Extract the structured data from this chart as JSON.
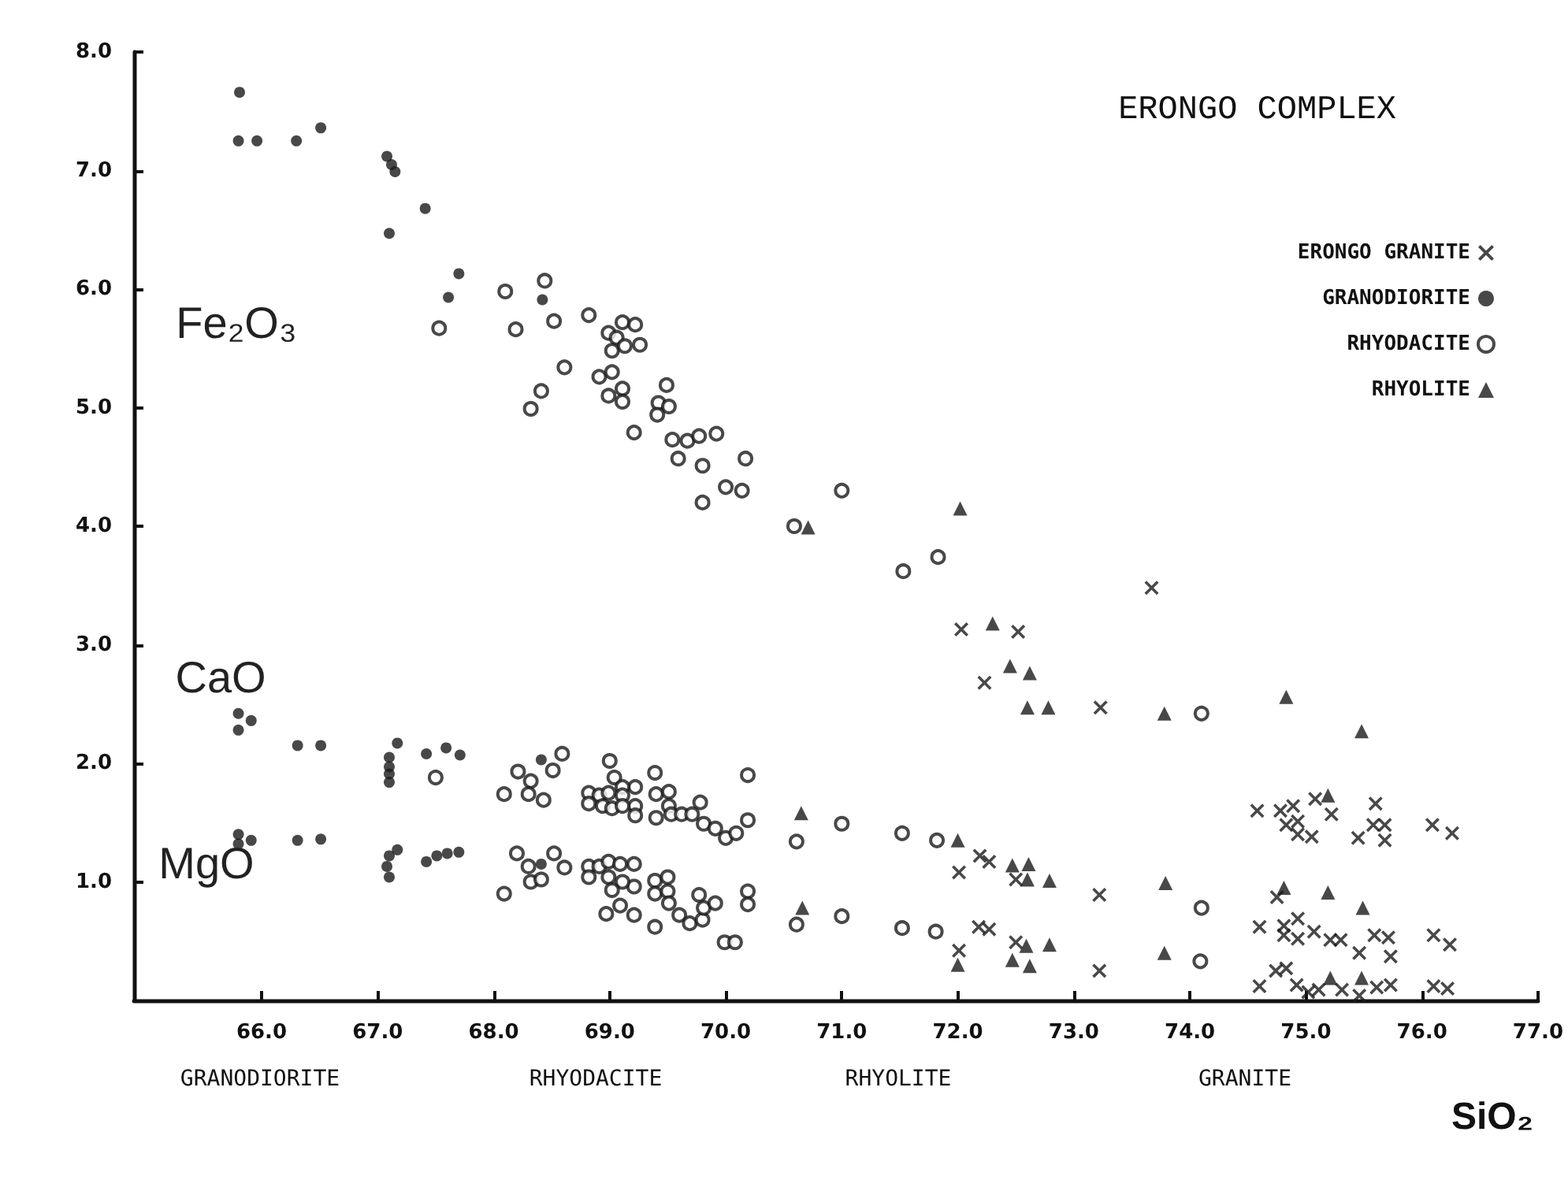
{
  "chart_data": {
    "type": "scatter",
    "title": "ERONGO COMPLEX",
    "xlabel": "SiO₂",
    "xlim": [
      64.9,
      77
    ],
    "ylim": [
      0,
      8
    ],
    "xticks": [
      {
        "value": 66,
        "label": "66.0"
      },
      {
        "value": 67,
        "label": "67.0"
      },
      {
        "value": 68,
        "label": "68.0"
      },
      {
        "value": 69,
        "label": "69.0"
      },
      {
        "value": 70,
        "label": "70.0"
      },
      {
        "value": 71,
        "label": "71.0"
      },
      {
        "value": 72,
        "label": "72.0"
      },
      {
        "value": 73,
        "label": "73.0"
      },
      {
        "value": 74,
        "label": "74.0"
      },
      {
        "value": 75,
        "label": "75.0"
      },
      {
        "value": 76,
        "label": "76.0"
      },
      {
        "value": 77,
        "label": "77.0"
      }
    ],
    "yticks": [
      {
        "value": 1,
        "label": "1.0"
      },
      {
        "value": 2,
        "label": "2.0"
      },
      {
        "value": 3,
        "label": "3.0"
      },
      {
        "value": 4,
        "label": "4.0"
      },
      {
        "value": 5,
        "label": "5.0"
      },
      {
        "value": 6,
        "label": "6.0"
      },
      {
        "value": 7,
        "label": "7.0"
      },
      {
        "value": 8,
        "label": "8.0"
      }
    ],
    "grid": false,
    "legend": "top right",
    "annotations": [
      "Fe₂O₃",
      "CaO",
      "MgO",
      "GRANODIORITE",
      "RHYODACITE",
      "RHYOLITE",
      "GRANITE"
    ],
    "series": [
      {
        "name": "ERONGO GRANITE",
        "color": "#1a1a1a",
        "marker": "cross",
        "x": [
          72.03,
          72.52,
          72.23,
          73.23,
          73.67,
          74.58,
          74.78,
          74.89,
          74.83,
          74.93,
          74.93,
          75.05,
          75.08,
          75.22,
          75.45,
          75.6,
          75.58,
          75.68,
          75.68,
          76.09,
          76.26,
          72.19,
          72.27,
          72.5,
          72.01,
          73.22,
          74.75,
          74.6,
          74.81,
          74.81,
          74.93,
          74.93,
          75.07,
          75.21,
          75.3,
          75.59,
          75.71,
          75.46,
          75.73,
          76.1,
          76.24,
          74.6,
          74.74,
          74.83,
          74.92,
          75.02,
          75.11,
          75.31,
          75.46,
          75.61,
          75.73,
          76.1,
          76.22,
          72.18,
          72.27,
          72.01,
          72.5,
          73.22
        ],
        "values": [
          3.13,
          3.11,
          2.68,
          2.47,
          3.48,
          1.6,
          1.6,
          1.64,
          1.48,
          1.51,
          1.4,
          1.38,
          1.7,
          1.57,
          1.37,
          1.66,
          1.48,
          1.48,
          1.35,
          1.48,
          1.41,
          1.22,
          1.17,
          1.02,
          1.08,
          0.89,
          0.87,
          0.62,
          0.63,
          0.55,
          0.69,
          0.52,
          0.58,
          0.51,
          0.51,
          0.55,
          0.53,
          0.4,
          0.37,
          0.55,
          0.47,
          0.12,
          0.25,
          0.27,
          0.13,
          0.07,
          0.09,
          0.09,
          0.04,
          0.11,
          0.13,
          0.12,
          0.1,
          0.62,
          0.6,
          0.42,
          0.49,
          0.25
        ]
      },
      {
        "name": "GRANODIORITE",
        "color": "#1a1a1a",
        "marker": "circle",
        "x": [
          65.81,
          65.8,
          65.96,
          66.3,
          66.51,
          67.08,
          67.12,
          67.15,
          67.41,
          67.1,
          67.7,
          67.61,
          68.42,
          65.8,
          65.91,
          65.8,
          66.31,
          66.51,
          67.17,
          67.1,
          67.1,
          67.1,
          67.1,
          67.42,
          67.59,
          67.71,
          68.41,
          65.8,
          65.8,
          65.91,
          66.31,
          66.51,
          67.17,
          67.1,
          67.08,
          67.1,
          67.42,
          67.51,
          67.6,
          67.7,
          68.41
        ],
        "values": [
          7.66,
          7.25,
          7.25,
          7.25,
          7.36,
          7.12,
          7.05,
          6.99,
          6.68,
          6.47,
          6.13,
          5.93,
          5.91,
          2.42,
          2.36,
          2.28,
          2.15,
          2.15,
          2.17,
          2.05,
          1.97,
          1.91,
          1.84,
          2.08,
          2.13,
          2.07,
          2.03,
          1.4,
          1.32,
          1.35,
          1.35,
          1.36,
          1.27,
          1.22,
          1.13,
          1.04,
          1.17,
          1.22,
          1.24,
          1.25,
          1.15
        ]
      },
      {
        "name": "RHYODACITE",
        "color": "#1a1a1a",
        "marker": "open-circle",
        "x": [
          67.53,
          68.1,
          68.19,
          68.44,
          68.52,
          68.82,
          68.61,
          68.41,
          68.32,
          69.11,
          69.22,
          68.99,
          69.06,
          69.02,
          69.13,
          69.26,
          68.91,
          69.02,
          69.11,
          68.99,
          69.11,
          69.21,
          69.49,
          69.42,
          69.51,
          69.41,
          69.54,
          69.67,
          69.77,
          69.92,
          69.59,
          69.8,
          70.17,
          70.0,
          70.14,
          69.8,
          71.0,
          70.59,
          71.53,
          71.83,
          74.1,
          69.39,
          70.19,
          69.22,
          69.4,
          69.51,
          69.22,
          69.22,
          69.4,
          69.51,
          69.53,
          69.62,
          69.71,
          69.78,
          69.81,
          69.91,
          70.0,
          70.09,
          70.19,
          70.61,
          71.0,
          71.52,
          71.82,
          67.5,
          68.59,
          68.21,
          68.32,
          68.51,
          68.09,
          68.3,
          68.43,
          69.0,
          69.04,
          69.11,
          68.82,
          68.91,
          68.99,
          69.11,
          68.82,
          68.94,
          69.02,
          69.11,
          69.21,
          69.21,
          69.21,
          69.39,
          69.5,
          69.39,
          69.5,
          69.51,
          69.39,
          69.6,
          69.69,
          69.8,
          69.77,
          69.81,
          69.91,
          70.19,
          70.19,
          69.99,
          70.08,
          70.61,
          71.0,
          71.52,
          71.81,
          74.1,
          74.09,
          68.2,
          68.52,
          68.3,
          68.32,
          68.41,
          68.61,
          68.09,
          68.82,
          68.91,
          68.99,
          69.09,
          68.82,
          68.99,
          69.11,
          69.02,
          68.97,
          69.09
        ],
        "values": [
          5.67,
          5.98,
          5.66,
          6.07,
          5.73,
          5.78,
          5.34,
          5.14,
          4.99,
          5.72,
          5.7,
          5.63,
          5.59,
          5.48,
          5.52,
          5.53,
          5.26,
          5.3,
          5.16,
          5.1,
          5.05,
          4.79,
          5.19,
          5.04,
          5.01,
          4.94,
          4.73,
          4.72,
          4.76,
          4.78,
          4.57,
          4.51,
          4.57,
          4.33,
          4.3,
          4.2,
          4.3,
          4.0,
          3.62,
          3.74,
          2.42,
          1.92,
          1.9,
          1.8,
          1.74,
          1.76,
          1.64,
          1.56,
          1.54,
          1.64,
          1.57,
          1.57,
          1.57,
          1.67,
          1.49,
          1.45,
          1.37,
          1.41,
          1.52,
          1.34,
          1.49,
          1.41,
          1.35,
          1.88,
          2.08,
          1.93,
          1.85,
          1.94,
          1.74,
          1.74,
          1.69,
          2.02,
          1.88,
          1.8,
          1.75,
          1.73,
          1.75,
          1.73,
          1.66,
          1.64,
          1.62,
          1.64,
          1.15,
          0.96,
          0.72,
          1.01,
          1.04,
          0.9,
          0.92,
          0.82,
          0.62,
          0.72,
          0.65,
          0.68,
          0.89,
          0.78,
          0.82,
          0.92,
          0.81,
          0.49,
          0.49,
          0.64,
          0.71,
          0.61,
          0.58,
          0.78,
          0.33,
          1.24,
          1.24,
          1.13,
          1.0,
          1.02,
          1.12,
          0.9,
          1.13,
          1.13,
          1.17,
          1.15,
          1.04,
          1.04,
          1.0,
          0.93,
          0.73,
          0.8
        ]
      },
      {
        "name": "RHYOLITE",
        "color": "#1a1a1a",
        "marker": "triangle",
        "x": [
          70.71,
          72.02,
          72.3,
          72.45,
          72.62,
          72.6,
          72.78,
          74.83,
          75.48,
          73.78,
          75.19,
          70.65,
          72.0,
          72.47,
          72.61,
          72.6,
          72.79,
          73.79,
          73.78,
          74.81,
          75.19,
          75.49,
          75.21,
          75.48,
          70.66,
          72.0,
          72.59,
          72.47,
          72.62,
          72.79
        ],
        "values": [
          3.99,
          4.15,
          3.18,
          2.82,
          2.76,
          2.47,
          2.47,
          2.56,
          2.27,
          2.42,
          1.73,
          1.58,
          1.35,
          1.14,
          1.15,
          1.02,
          1.01,
          0.99,
          0.4,
          0.95,
          0.91,
          0.78,
          0.19,
          0.19,
          0.78,
          0.3,
          0.46,
          0.34,
          0.29,
          0.47
        ]
      }
    ]
  }
}
